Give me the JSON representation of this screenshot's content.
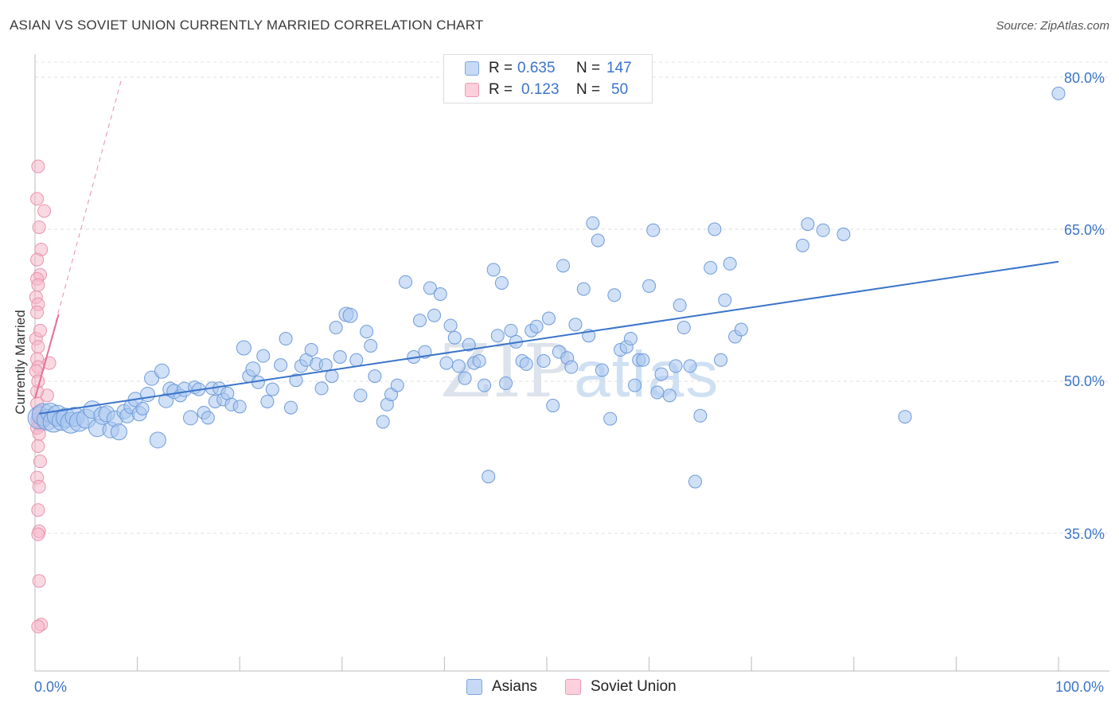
{
  "header": {
    "title": "ASIAN VS SOVIET UNION CURRENTLY MARRIED CORRELATION CHART",
    "source": "Source: ZipAtlas.com"
  },
  "watermark": {
    "zip": "ZIP",
    "atlas": "atlas"
  },
  "legend": {
    "rows": [
      {
        "r_label": "R =",
        "r_value": "0.635",
        "n_label": "N =",
        "n_value": "147",
        "color": "#a9c7f0"
      },
      {
        "r_label": "R =",
        "r_value": "0.123",
        "n_label": "N =",
        "n_value": "50",
        "color": "#f6b8cb"
      }
    ],
    "series": [
      {
        "name": "Asians",
        "color": "#a9c7f0"
      },
      {
        "name": "Soviet Union",
        "color": "#f6b8cb"
      }
    ]
  },
  "axes": {
    "y_title": "Currently Married",
    "x_min_label": "0.0%",
    "x_max_label": "100.0%",
    "y_ticks": [
      "80.0%",
      "65.0%",
      "50.0%",
      "35.0%"
    ]
  },
  "chart_data": {
    "type": "scatter",
    "title": "ASIAN VS SOVIET UNION CURRENTLY MARRIED CORRELATION CHART",
    "xlabel": "",
    "ylabel": "Currently Married",
    "xlim": [
      0,
      100
    ],
    "ylim": [
      20,
      83
    ],
    "y_ticks": [
      35,
      50,
      65,
      80
    ],
    "grid": true,
    "legend_position": "top-center",
    "series": [
      {
        "name": "Asians",
        "color": "#a9c7f0",
        "stroke": "#6e9bd8",
        "r": 0.635,
        "n": 147,
        "trend": {
          "x": [
            0.4,
            100
          ],
          "y": [
            46.8,
            61.8
          ],
          "style": "solid",
          "color": "#3a74c9"
        },
        "points": [
          [
            0.4,
            46.4,
            14
          ],
          [
            0.8,
            46.7,
            14
          ],
          [
            1.2,
            46.2,
            13
          ],
          [
            1.5,
            46.9,
            12
          ],
          [
            1.8,
            46.0,
            13
          ],
          [
            2.2,
            46.6,
            13
          ],
          [
            2.6,
            46.1,
            12
          ],
          [
            3.0,
            46.4,
            12
          ],
          [
            3.5,
            45.9,
            13
          ],
          [
            3.9,
            46.5,
            12
          ],
          [
            4.3,
            46.0,
            12
          ],
          [
            5.0,
            46.3,
            12
          ],
          [
            5.6,
            47.2,
            11
          ],
          [
            6.1,
            45.4,
            11
          ],
          [
            6.6,
            46.6,
            11
          ],
          [
            7.0,
            46.8,
            10
          ],
          [
            7.4,
            45.2,
            10
          ],
          [
            7.8,
            46.3,
            10
          ],
          [
            8.2,
            45.0,
            10
          ],
          [
            8.7,
            47.0,
            9
          ],
          [
            9.0,
            46.6,
            9
          ],
          [
            9.4,
            47.5,
            9
          ],
          [
            9.8,
            48.2,
            9
          ],
          [
            10.2,
            46.8,
            9
          ],
          [
            10.5,
            47.3,
            8
          ],
          [
            11.0,
            48.7,
            9
          ],
          [
            11.4,
            50.3,
            9
          ],
          [
            12.0,
            44.2,
            10
          ],
          [
            12.4,
            51.0,
            9
          ],
          [
            12.8,
            48.1,
            9
          ],
          [
            13.2,
            49.2,
            9
          ],
          [
            13.6,
            49.0,
            9
          ],
          [
            14.2,
            48.6,
            8
          ],
          [
            14.6,
            49.2,
            9
          ],
          [
            15.2,
            46.4,
            9
          ],
          [
            15.6,
            49.4,
            8
          ],
          [
            16.0,
            49.2,
            8
          ],
          [
            16.5,
            46.9,
            8
          ],
          [
            16.9,
            46.4,
            8
          ],
          [
            17.3,
            49.3,
            8
          ],
          [
            17.6,
            48.0,
            8
          ],
          [
            18.0,
            49.3,
            8
          ],
          [
            18.4,
            48.2,
            8
          ],
          [
            18.8,
            48.8,
            8
          ],
          [
            19.2,
            47.7,
            8
          ],
          [
            20.0,
            47.5,
            8
          ],
          [
            20.4,
            53.3,
            9
          ],
          [
            20.9,
            50.5,
            8
          ],
          [
            21.3,
            51.2,
            9
          ],
          [
            21.8,
            49.9,
            8
          ],
          [
            22.3,
            52.5,
            8
          ],
          [
            22.7,
            48.0,
            8
          ],
          [
            23.2,
            49.2,
            8
          ],
          [
            24.0,
            51.6,
            8
          ],
          [
            24.5,
            54.2,
            8
          ],
          [
            25.0,
            47.4,
            8
          ],
          [
            25.5,
            50.1,
            8
          ],
          [
            26.0,
            51.5,
            8
          ],
          [
            26.5,
            52.1,
            8
          ],
          [
            27.0,
            53.1,
            8
          ],
          [
            27.5,
            51.7,
            8
          ],
          [
            28.0,
            49.3,
            8
          ],
          [
            28.4,
            51.6,
            8
          ],
          [
            29.0,
            50.5,
            8
          ],
          [
            29.4,
            55.3,
            8
          ],
          [
            29.8,
            52.4,
            8
          ],
          [
            30.4,
            56.6,
            9
          ],
          [
            30.8,
            56.5,
            9
          ],
          [
            31.4,
            52.1,
            8
          ],
          [
            31.8,
            48.6,
            8
          ],
          [
            32.4,
            54.9,
            8
          ],
          [
            32.8,
            53.5,
            8
          ],
          [
            33.2,
            50.5,
            8
          ],
          [
            34.0,
            46.0,
            8
          ],
          [
            34.4,
            47.7,
            8
          ],
          [
            34.8,
            48.7,
            8
          ],
          [
            35.4,
            49.6,
            8
          ],
          [
            36.2,
            59.8,
            8
          ],
          [
            37.0,
            52.4,
            8
          ],
          [
            37.6,
            56.0,
            8
          ],
          [
            38.1,
            52.9,
            8
          ],
          [
            38.6,
            59.2,
            8
          ],
          [
            39.0,
            56.5,
            8
          ],
          [
            39.6,
            58.6,
            8
          ],
          [
            40.2,
            51.8,
            8
          ],
          [
            40.6,
            55.5,
            8
          ],
          [
            41.0,
            54.3,
            8
          ],
          [
            41.4,
            51.5,
            8
          ],
          [
            42.0,
            50.3,
            8
          ],
          [
            42.4,
            53.6,
            8
          ],
          [
            42.9,
            51.8,
            8
          ],
          [
            43.4,
            52.0,
            8
          ],
          [
            43.9,
            49.6,
            8
          ],
          [
            44.3,
            40.6,
            8
          ],
          [
            44.8,
            61.0,
            8
          ],
          [
            45.2,
            54.5,
            8
          ],
          [
            45.6,
            59.7,
            8
          ],
          [
            46.0,
            49.8,
            8
          ],
          [
            46.5,
            55.0,
            8
          ],
          [
            47.0,
            53.9,
            8
          ],
          [
            47.6,
            52.0,
            8
          ],
          [
            48.0,
            51.7,
            8
          ],
          [
            48.5,
            55.0,
            8
          ],
          [
            49.0,
            55.4,
            8
          ],
          [
            49.7,
            52.0,
            8
          ],
          [
            50.2,
            56.2,
            8
          ],
          [
            50.6,
            47.6,
            8
          ],
          [
            51.2,
            52.9,
            8
          ],
          [
            51.6,
            61.4,
            8
          ],
          [
            52.0,
            52.3,
            8
          ],
          [
            52.4,
            51.4,
            8
          ],
          [
            52.8,
            55.6,
            8
          ],
          [
            53.6,
            59.1,
            8
          ],
          [
            54.1,
            54.5,
            8
          ],
          [
            54.5,
            65.6,
            8
          ],
          [
            55.0,
            63.9,
            8
          ],
          [
            55.4,
            51.1,
            8
          ],
          [
            56.2,
            46.3,
            8
          ],
          [
            56.6,
            58.5,
            8
          ],
          [
            57.2,
            53.1,
            8
          ],
          [
            57.8,
            53.4,
            8
          ],
          [
            58.2,
            54.2,
            8
          ],
          [
            58.6,
            49.6,
            8
          ],
          [
            59.0,
            52.1,
            8
          ],
          [
            59.4,
            52.1,
            8
          ],
          [
            60.0,
            59.4,
            8
          ],
          [
            60.4,
            64.9,
            8
          ],
          [
            60.8,
            48.9,
            8
          ],
          [
            61.2,
            50.7,
            8
          ],
          [
            62.0,
            48.6,
            8
          ],
          [
            62.6,
            51.5,
            8
          ],
          [
            63.0,
            57.5,
            8
          ],
          [
            63.4,
            55.3,
            8
          ],
          [
            64.0,
            51.5,
            8
          ],
          [
            64.5,
            40.1,
            8
          ],
          [
            65.0,
            46.6,
            8
          ],
          [
            66.0,
            61.2,
            8
          ],
          [
            66.4,
            65.0,
            8
          ],
          [
            67.0,
            52.1,
            8
          ],
          [
            67.4,
            58.0,
            8
          ],
          [
            67.9,
            61.6,
            8
          ],
          [
            68.4,
            54.4,
            8
          ],
          [
            69.0,
            55.1,
            8
          ],
          [
            75.0,
            63.4,
            8
          ],
          [
            75.5,
            65.5,
            8
          ],
          [
            77.0,
            64.9,
            8
          ],
          [
            79.0,
            64.5,
            8
          ],
          [
            85.0,
            46.5,
            8
          ],
          [
            100.0,
            78.4,
            8
          ]
        ]
      },
      {
        "name": "Soviet Union",
        "color": "#f6b8cb",
        "stroke": "#e893ad",
        "r": 0.123,
        "n": 50,
        "trend": {
          "x": [
            0,
            2.3
          ],
          "y": [
            48.3,
            56.6
          ],
          "style": "solid",
          "color": "#e5709a",
          "extension": {
            "x": [
              0,
              8.5
            ],
            "y": [
              48.3,
              80.0
            ],
            "style": "dashed"
          }
        },
        "points": [
          [
            0.3,
            71.2,
            8
          ],
          [
            0.2,
            68.0,
            8
          ],
          [
            0.9,
            66.8,
            8
          ],
          [
            0.4,
            65.2,
            8
          ],
          [
            0.6,
            63.0,
            8
          ],
          [
            0.5,
            60.5,
            8
          ],
          [
            0.2,
            60.1,
            8
          ],
          [
            0.3,
            59.5,
            8
          ],
          [
            0.1,
            58.3,
            8
          ],
          [
            0.3,
            57.6,
            8
          ],
          [
            0.2,
            56.8,
            8
          ],
          [
            0.1,
            54.2,
            8
          ],
          [
            0.3,
            53.4,
            8
          ],
          [
            0.2,
            52.2,
            8
          ],
          [
            1.4,
            51.8,
            8
          ],
          [
            0.3,
            51.4,
            8
          ],
          [
            0.1,
            51.0,
            8
          ],
          [
            1.2,
            48.6,
            8
          ],
          [
            0.2,
            47.8,
            8
          ],
          [
            0.4,
            47.0,
            8
          ],
          [
            0.3,
            46.2,
            9
          ],
          [
            0.5,
            45.8,
            9
          ],
          [
            0.2,
            45.4,
            8
          ],
          [
            0.4,
            44.8,
            8
          ],
          [
            0.3,
            43.6,
            8
          ],
          [
            0.5,
            42.1,
            8
          ],
          [
            0.2,
            40.5,
            8
          ],
          [
            0.4,
            39.6,
            8
          ],
          [
            0.3,
            37.3,
            8
          ],
          [
            0.4,
            35.2,
            8
          ],
          [
            0.3,
            34.9,
            8
          ],
          [
            0.4,
            30.3,
            8
          ],
          [
            0.6,
            26.0,
            8
          ],
          [
            0.3,
            25.8,
            8
          ],
          [
            0.6,
            46.5,
            8
          ],
          [
            0.8,
            46.0,
            8
          ],
          [
            0.2,
            49.0,
            8
          ],
          [
            0.3,
            50.0,
            8
          ],
          [
            0.5,
            55.0,
            8
          ],
          [
            0.2,
            62.0,
            8
          ]
        ]
      }
    ]
  }
}
